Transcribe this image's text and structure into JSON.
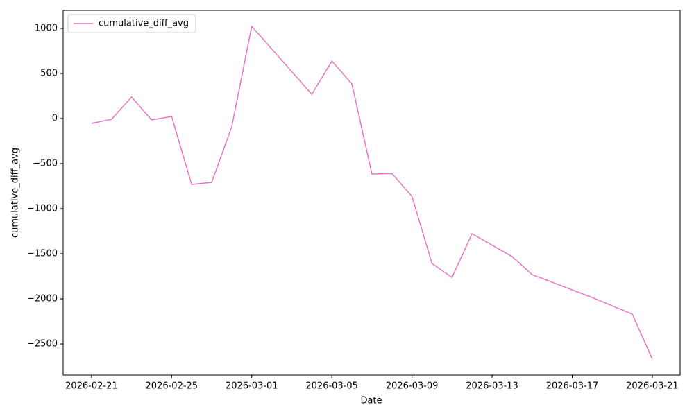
{
  "chart_data": {
    "type": "line",
    "xlabel": "Date",
    "ylabel": "cumulative_diff_avg",
    "x": [
      "2026-02-21",
      "2026-02-22",
      "2026-02-23",
      "2026-02-24",
      "2026-02-25",
      "2026-02-26",
      "2026-02-27",
      "2026-02-28",
      "2026-03-01",
      "2026-03-04",
      "2026-03-05",
      "2026-03-06",
      "2026-03-07",
      "2026-03-08",
      "2026-03-09",
      "2026-03-10",
      "2026-03-11",
      "2026-03-12",
      "2026-03-14",
      "2026-03-15",
      "2026-03-18",
      "2026-03-19",
      "2026-03-20",
      "2026-03-21"
    ],
    "series": [
      {
        "name": "cumulative_diff_avg",
        "color": "#e377c2",
        "values": [
          -54,
          -8,
          238,
          -15,
          23,
          -731,
          -708,
          -92,
          1023,
          269,
          638,
          385,
          -615,
          -610,
          -862,
          -1608,
          -1762,
          -1277,
          -1531,
          -1731,
          -1985,
          -2077,
          -2169,
          -2669
        ]
      }
    ],
    "xlim": [
      "2026-02-19T14:00:00Z",
      "2026-03-22T09:20:00Z"
    ],
    "xticks": [
      "2026-02-21",
      "2026-02-25",
      "2026-03-01",
      "2026-03-05",
      "2026-03-09",
      "2026-03-13",
      "2026-03-17",
      "2026-03-21"
    ],
    "ylim": [
      -2846,
      1200
    ],
    "yticks": [
      {
        "value": -2500,
        "label": "−2500"
      },
      {
        "value": -2000,
        "label": "−2000"
      },
      {
        "value": -1500,
        "label": "−1500"
      },
      {
        "value": -1000,
        "label": "−1000"
      },
      {
        "value": -500,
        "label": "−500"
      },
      0,
      500,
      1000
    ],
    "legend": "upper left",
    "grid": false
  }
}
